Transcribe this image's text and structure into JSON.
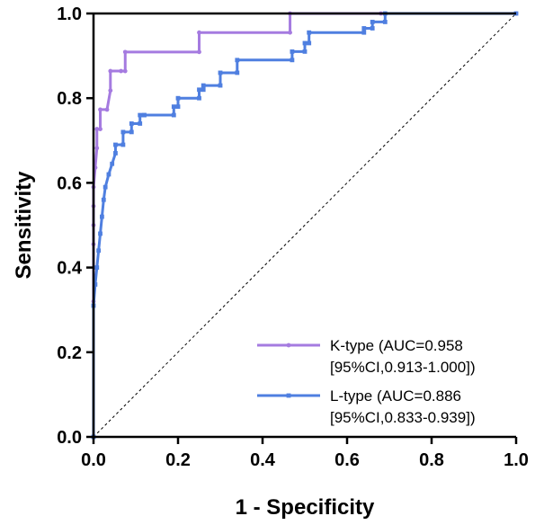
{
  "chart_data": {
    "type": "line",
    "xlabel": "1 - Specificity",
    "ylabel": "Sensitivity",
    "xlim": [
      0,
      1
    ],
    "ylim": [
      0,
      1
    ],
    "xticks": [
      "0.0",
      "0.2",
      "0.4",
      "0.6",
      "0.8",
      "1.0"
    ],
    "yticks": [
      "0.0",
      "0.2",
      "0.4",
      "0.6",
      "0.8",
      "1.0"
    ],
    "grid": false,
    "legend_position": "bottom-right",
    "reference_line": {
      "x": [
        0,
        1
      ],
      "y": [
        0,
        1
      ],
      "style": "dotted"
    },
    "series": [
      {
        "name": "K-type (AUC=0.958",
        "name_line2": "[95%CI,0.913-1.000])",
        "color": "#a57be0",
        "x": [
          0.0,
          0.0,
          0.0,
          0.0,
          0.0,
          0.0,
          0.004,
          0.004,
          0.008,
          0.008,
          0.016,
          0.016,
          0.032,
          0.04,
          0.04,
          0.065,
          0.075,
          0.075,
          0.25,
          0.25,
          0.465,
          0.465,
          0.68,
          0.69,
          1.0
        ],
        "y": [
          0.0,
          0.32,
          0.455,
          0.5,
          0.545,
          0.59,
          0.636,
          0.636,
          0.682,
          0.727,
          0.727,
          0.773,
          0.773,
          0.818,
          0.864,
          0.864,
          0.864,
          0.909,
          0.909,
          0.955,
          0.955,
          1.0,
          1.0,
          1.0,
          1.0
        ]
      },
      {
        "name": "L-type (AUC=0.886",
        "name_line2": "[95%CI,0.833-0.939])",
        "color": "#4f7fe0",
        "x": [
          0.0,
          0.0,
          0.004,
          0.008,
          0.012,
          0.016,
          0.02,
          0.024,
          0.028,
          0.036,
          0.044,
          0.052,
          0.052,
          0.07,
          0.07,
          0.09,
          0.09,
          0.11,
          0.11,
          0.12,
          0.12,
          0.19,
          0.19,
          0.2,
          0.2,
          0.25,
          0.25,
          0.26,
          0.26,
          0.3,
          0.3,
          0.34,
          0.34,
          0.47,
          0.47,
          0.5,
          0.5,
          0.51,
          0.51,
          0.64,
          0.64,
          0.66,
          0.66,
          0.69,
          0.69,
          1.0
        ],
        "y": [
          0.0,
          0.31,
          0.36,
          0.4,
          0.44,
          0.48,
          0.52,
          0.56,
          0.59,
          0.62,
          0.645,
          0.67,
          0.69,
          0.69,
          0.72,
          0.72,
          0.74,
          0.74,
          0.76,
          0.76,
          0.76,
          0.76,
          0.78,
          0.78,
          0.8,
          0.8,
          0.82,
          0.82,
          0.83,
          0.83,
          0.86,
          0.86,
          0.89,
          0.89,
          0.91,
          0.91,
          0.93,
          0.93,
          0.955,
          0.955,
          0.965,
          0.965,
          0.98,
          0.98,
          1.0,
          1.0
        ]
      }
    ]
  },
  "colors": {
    "axis": "#000000",
    "reference": "#000000",
    "background": "#ffffff"
  }
}
